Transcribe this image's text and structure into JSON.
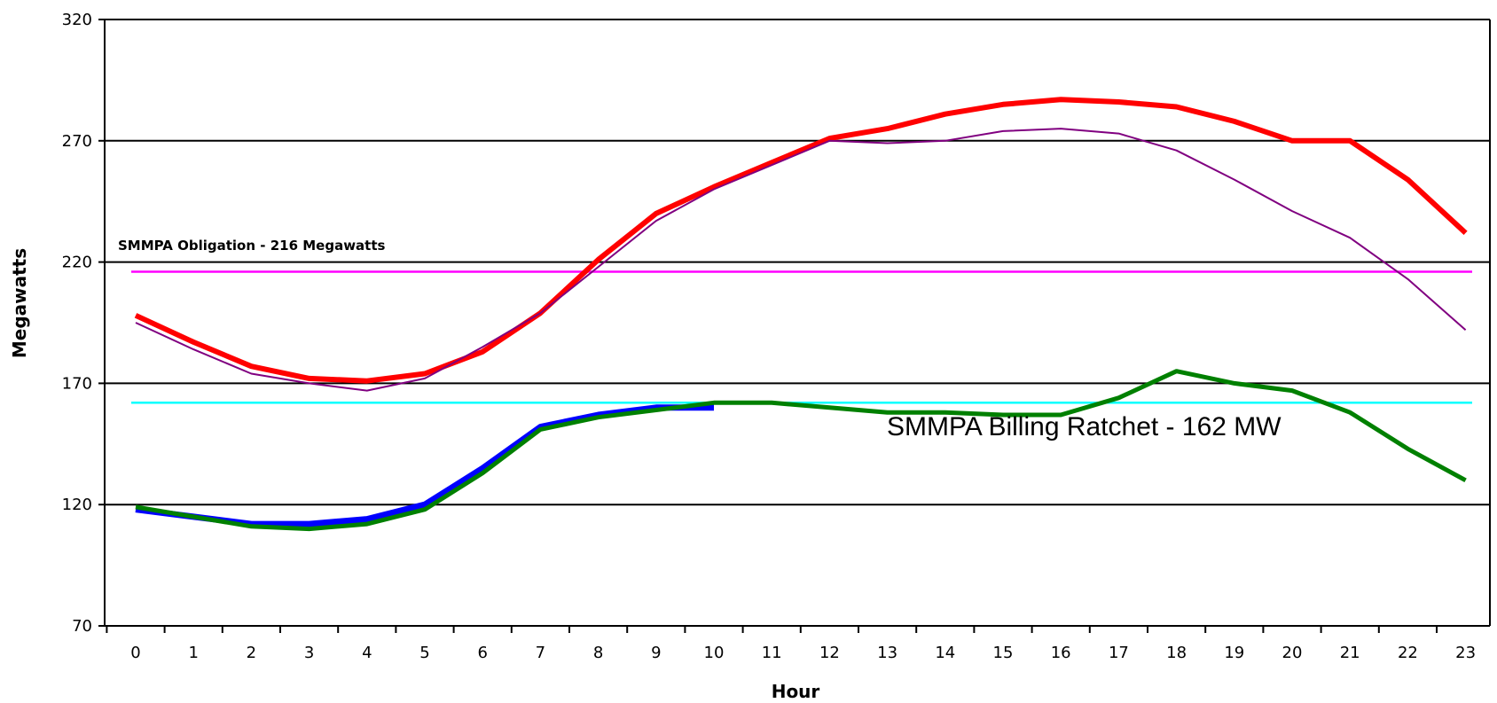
{
  "chart_data": {
    "type": "line",
    "title": "",
    "xlabel": "Hour",
    "ylabel": "Megawatts",
    "ylim": [
      70,
      320
    ],
    "yticks": [
      70,
      120,
      170,
      220,
      270,
      320
    ],
    "gridlines_y": [
      120,
      170,
      220,
      270
    ],
    "categories": [
      "0",
      "1",
      "2",
      "3",
      "4",
      "5",
      "6",
      "7",
      "8",
      "9",
      "10",
      "11",
      "12",
      "13",
      "14",
      "15",
      "16",
      "17",
      "18",
      "19",
      "20",
      "21",
      "22",
      "23"
    ],
    "legend": "none",
    "series": [
      {
        "color": "#ff0000",
        "x": [
          0,
          1,
          2,
          3,
          4,
          5,
          6,
          7,
          8,
          9,
          10,
          11,
          12,
          13,
          14,
          15,
          16,
          17,
          18,
          19,
          20,
          21,
          22,
          23
        ],
        "values": [
          198,
          187,
          177,
          172,
          171,
          174,
          183,
          199,
          221,
          240,
          251,
          261,
          271,
          275,
          281,
          285,
          287,
          286,
          284,
          278,
          270,
          270,
          254,
          232
        ]
      },
      {
        "color": "#800080",
        "x": [
          0,
          1,
          2,
          3,
          4,
          5,
          6,
          7,
          8,
          9,
          10,
          11,
          12,
          13,
          14,
          15,
          16,
          17,
          18,
          19,
          20,
          21,
          22,
          23
        ],
        "values": [
          195,
          184,
          174,
          170,
          167,
          172,
          185,
          199,
          218,
          237,
          250,
          260,
          270,
          269,
          270,
          274,
          275,
          273,
          266,
          254,
          241,
          230,
          213,
          192
        ]
      },
      {
        "color": "#0000ff",
        "x": [
          0,
          1,
          2,
          3,
          4,
          5,
          6,
          7,
          8,
          9,
          10
        ],
        "values": [
          118,
          115,
          112,
          112,
          114,
          120,
          135,
          152,
          157,
          160,
          160
        ]
      },
      {
        "color": "#008000",
        "x": [
          0,
          1,
          2,
          3,
          4,
          5,
          6,
          7,
          8,
          9,
          10,
          11,
          12,
          13,
          14,
          15,
          16,
          17,
          18,
          19,
          20,
          21,
          22,
          23
        ],
        "values": [
          119,
          115,
          111,
          110,
          112,
          118,
          133,
          151,
          156,
          159,
          162,
          162,
          160,
          158,
          158,
          157,
          157,
          164,
          175,
          170,
          167,
          158,
          143,
          130
        ]
      }
    ],
    "reference_lines": [
      {
        "value": 216,
        "color": "#ff00ff",
        "label": "SMMPA Obligation - 216 Megawatts"
      },
      {
        "value": 162,
        "color": "#00ffff",
        "label": "SMMPA Billing Ratchet - 162 MW"
      }
    ]
  }
}
